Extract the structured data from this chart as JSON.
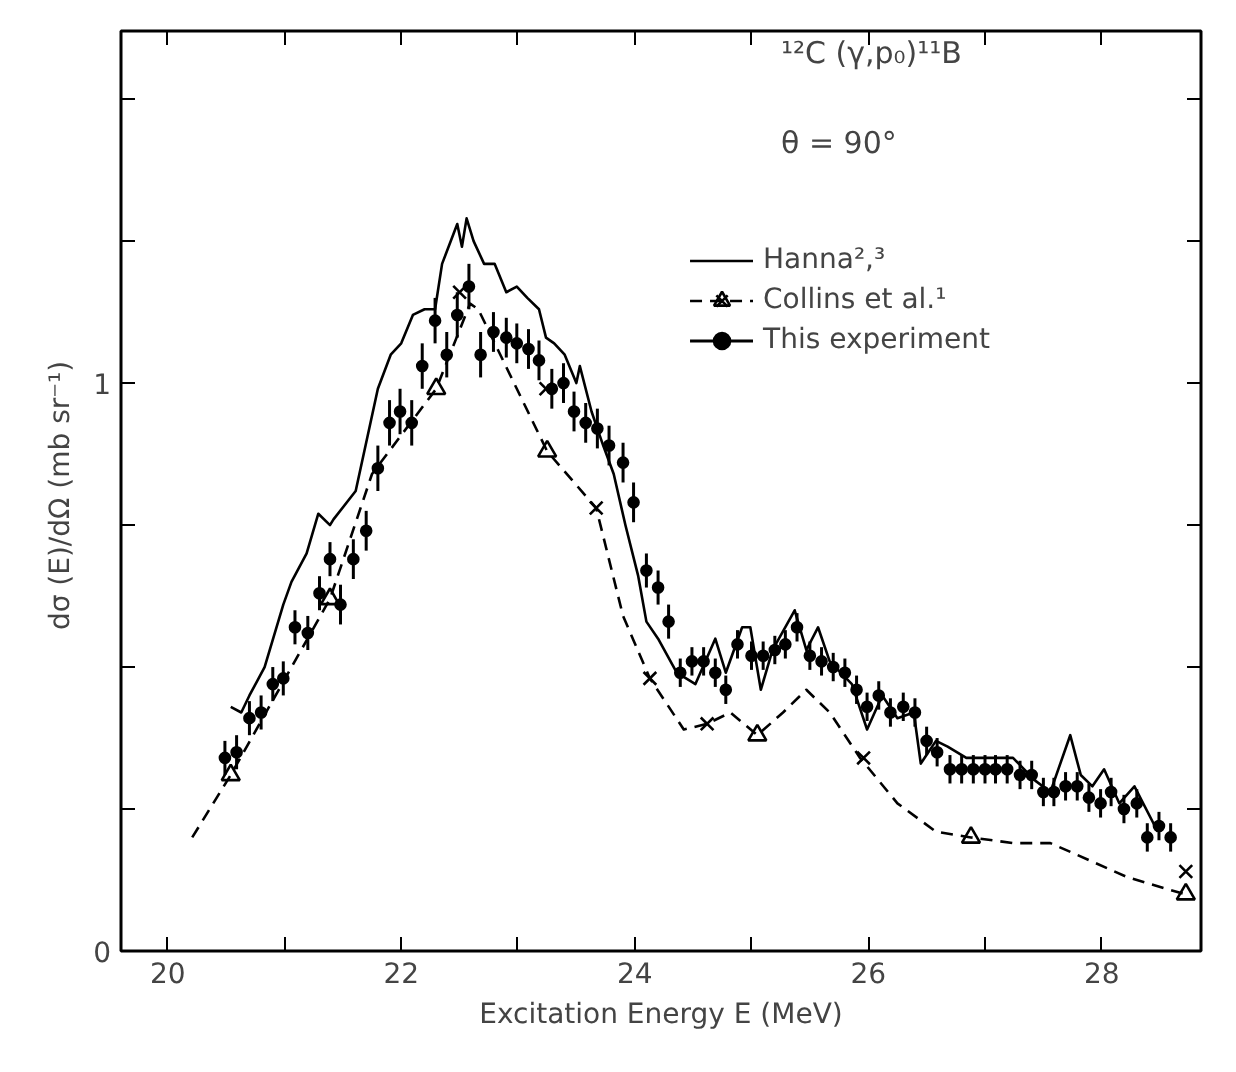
{
  "chart_data": {
    "type": "line",
    "xlabel": "Excitation Energy E (MeV)",
    "ylabel": "dσ (E)/dΩ  (mb sr⁻¹)",
    "annotations": [
      "¹²C (γ,p₀)¹¹B",
      "θ = 90°"
    ],
    "xlim": [
      19.6,
      28.85
    ],
    "ylim": [
      0,
      1.62
    ],
    "xticks": [
      20,
      {
        "value": 21,
        "label": null
      },
      22,
      {
        "value": 23,
        "label": null
      },
      24,
      {
        "value": 25,
        "label": null
      },
      26,
      {
        "value": 27,
        "label": null
      },
      28
    ],
    "yticks": [
      0,
      {
        "value": 0.25,
        "label": null
      },
      {
        "value": 0.5,
        "label": null
      },
      {
        "value": 0.75,
        "label": null
      },
      1,
      {
        "value": 1.25,
        "label": null
      },
      {
        "value": 1.5,
        "label": null
      }
    ],
    "grid": false,
    "legend": "top right",
    "series": [
      {
        "name": "Hanna²,³",
        "color": "#000000",
        "line_style": "solid",
        "x": [
          20.54,
          20.63,
          20.7,
          20.83,
          20.99,
          21.06,
          21.19,
          21.29,
          21.39,
          21.42,
          21.61,
          21.8,
          21.91,
          22.0,
          22.1,
          22.2,
          22.29,
          22.35,
          22.48,
          22.52,
          22.56,
          22.62,
          22.71,
          22.8,
          22.9,
          22.99,
          23.08,
          23.18,
          23.24,
          23.31,
          23.4,
          23.5,
          23.53,
          23.63,
          23.73,
          23.82,
          23.92,
          24.03,
          24.1,
          24.2,
          24.36,
          24.52,
          24.69,
          24.78,
          24.92,
          24.99,
          25.08,
          25.18,
          25.37,
          25.47,
          25.57,
          25.67,
          25.86,
          25.99,
          26.12,
          26.25,
          26.39,
          26.45,
          26.58,
          26.68,
          26.84,
          27.04,
          27.24,
          27.43,
          27.56,
          27.73,
          27.82,
          27.92,
          28.02,
          28.15,
          28.28,
          28.48
        ],
        "values": [
          0.43,
          0.42,
          0.45,
          0.5,
          0.61,
          0.65,
          0.7,
          0.77,
          0.75,
          0.76,
          0.81,
          0.99,
          1.05,
          1.07,
          1.12,
          1.13,
          1.13,
          1.21,
          1.28,
          1.24,
          1.29,
          1.25,
          1.21,
          1.21,
          1.16,
          1.17,
          1.15,
          1.13,
          1.08,
          1.07,
          1.05,
          1.0,
          1.03,
          0.95,
          0.89,
          0.84,
          0.75,
          0.66,
          0.58,
          0.55,
          0.49,
          0.47,
          0.55,
          0.49,
          0.57,
          0.57,
          0.46,
          0.53,
          0.6,
          0.53,
          0.57,
          0.51,
          0.47,
          0.39,
          0.45,
          0.41,
          0.42,
          0.33,
          0.37,
          0.36,
          0.34,
          0.34,
          0.34,
          0.3,
          0.28,
          0.38,
          0.31,
          0.29,
          0.32,
          0.26,
          0.29,
          0.21
        ]
      },
      {
        "name": "Collins et al.¹",
        "color": "#000000",
        "line_style": "dashed",
        "x": [
          20.21,
          20.54,
          21.39,
          21.75,
          22.3,
          22.59,
          22.66,
          22.99,
          23.25,
          23.67,
          23.9,
          24.13,
          24.42,
          24.62,
          24.82,
          25.05,
          25.27,
          25.47,
          25.67,
          25.93,
          26.25,
          26.58,
          26.88,
          27.24,
          27.56,
          27.89,
          28.22,
          28.71
        ],
        "values": [
          0.2,
          0.31,
          0.62,
          0.84,
          0.99,
          1.14,
          1.13,
          0.99,
          0.88,
          0.78,
          0.59,
          0.48,
          0.39,
          0.4,
          0.42,
          0.38,
          0.42,
          0.46,
          0.42,
          0.34,
          0.26,
          0.21,
          0.2,
          0.19,
          0.19,
          0.16,
          0.13,
          0.1
        ]
      },
      {
        "type": "scatter",
        "marker": "triangle",
        "color": "#000000",
        "x": [
          20.54,
          21.39,
          22.3,
          23.25,
          25.05,
          26.88,
          28.72
        ],
        "values": [
          0.31,
          0.62,
          0.99,
          0.88,
          0.38,
          0.2,
          0.1
        ]
      },
      {
        "type": "scatter",
        "marker": "cross",
        "color": "#000000",
        "x": [
          22.5,
          23.24,
          23.67,
          24.13,
          24.62,
          25.96,
          28.72
        ],
        "values": [
          1.16,
          0.99,
          0.78,
          0.48,
          0.4,
          0.34,
          0.14
        ]
      },
      {
        "name": "This experiment",
        "type": "scatter",
        "marker": "circle",
        "color": "#000000",
        "x": [
          20.49,
          20.59,
          20.7,
          20.8,
          20.9,
          20.99,
          21.09,
          21.2,
          21.3,
          21.39,
          21.48,
          21.59,
          21.7,
          21.8,
          21.9,
          21.99,
          22.09,
          22.18,
          22.29,
          22.39,
          22.48,
          22.58,
          22.68,
          22.79,
          22.9,
          22.99,
          23.09,
          23.18,
          23.29,
          23.39,
          23.48,
          23.58,
          23.68,
          23.78,
          23.9,
          23.99,
          24.1,
          24.2,
          24.29,
          24.39,
          24.49,
          24.59,
          24.69,
          24.78,
          24.88,
          25.0,
          25.1,
          25.2,
          25.29,
          25.39,
          25.5,
          25.6,
          25.7,
          25.8,
          25.9,
          25.99,
          26.09,
          26.19,
          26.3,
          26.4,
          26.5,
          26.59,
          26.7,
          26.8,
          26.9,
          27.0,
          27.09,
          27.19,
          27.3,
          27.4,
          27.5,
          27.59,
          27.69,
          27.79,
          27.89,
          27.99,
          28.08,
          28.19,
          28.3,
          28.39,
          28.49,
          28.59
        ],
        "values": [
          0.34,
          0.35,
          0.41,
          0.42,
          0.47,
          0.48,
          0.57,
          0.56,
          0.63,
          0.69,
          0.61,
          0.69,
          0.74,
          0.85,
          0.93,
          0.95,
          0.93,
          1.03,
          1.11,
          1.05,
          1.12,
          1.17,
          1.05,
          1.09,
          1.08,
          1.07,
          1.06,
          1.04,
          0.99,
          1.0,
          0.95,
          0.93,
          0.92,
          0.89,
          0.86,
          0.79,
          0.67,
          0.64,
          0.58,
          0.49,
          0.51,
          0.51,
          0.49,
          0.46,
          0.54,
          0.52,
          0.52,
          0.53,
          0.54,
          0.57,
          0.52,
          0.51,
          0.5,
          0.49,
          0.46,
          0.43,
          0.45,
          0.42,
          0.43,
          0.42,
          0.37,
          0.35,
          0.32,
          0.32,
          0.32,
          0.32,
          0.32,
          0.32,
          0.31,
          0.31,
          0.28,
          0.28,
          0.29,
          0.29,
          0.27,
          0.26,
          0.28,
          0.25,
          0.26,
          0.2,
          0.22,
          0.2
        ],
        "errors": [
          0.03,
          0.03,
          0.03,
          0.03,
          0.03,
          0.03,
          0.03,
          0.03,
          0.03,
          0.03,
          0.035,
          0.035,
          0.035,
          0.04,
          0.04,
          0.04,
          0.04,
          0.04,
          0.04,
          0.04,
          0.04,
          0.04,
          0.04,
          0.035,
          0.035,
          0.035,
          0.035,
          0.035,
          0.035,
          0.035,
          0.035,
          0.035,
          0.035,
          0.035,
          0.035,
          0.035,
          0.03,
          0.03,
          0.03,
          0.025,
          0.025,
          0.025,
          0.025,
          0.025,
          0.025,
          0.025,
          0.025,
          0.025,
          0.025,
          0.025,
          0.025,
          0.025,
          0.025,
          0.025,
          0.025,
          0.025,
          0.025,
          0.025,
          0.025,
          0.025,
          0.025,
          0.025,
          0.025,
          0.025,
          0.025,
          0.025,
          0.025,
          0.025,
          0.025,
          0.025,
          0.025,
          0.025,
          0.025,
          0.025,
          0.025,
          0.025,
          0.025,
          0.025,
          0.025,
          0.025,
          0.025,
          0.025
        ]
      }
    ]
  }
}
